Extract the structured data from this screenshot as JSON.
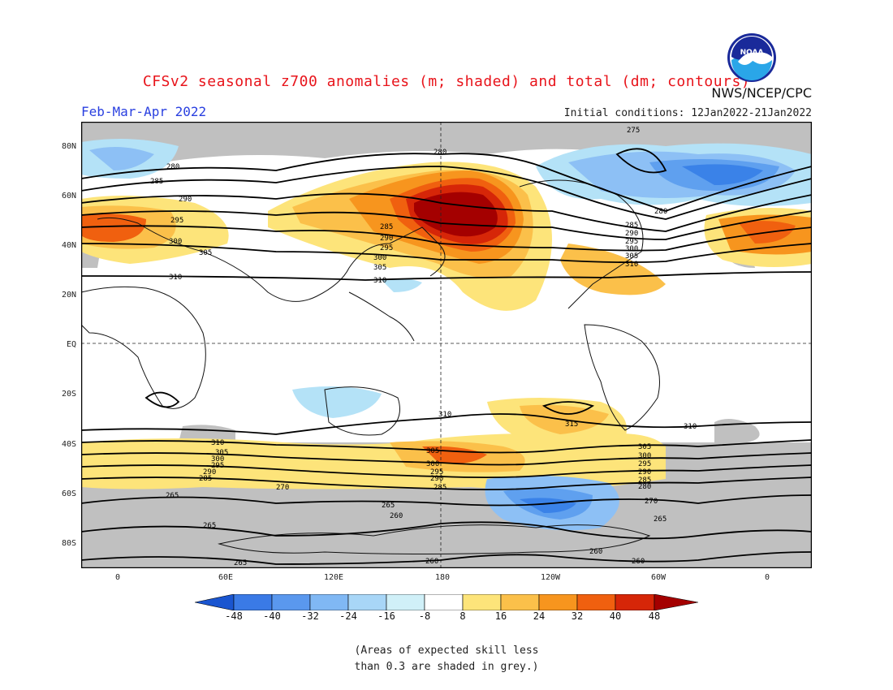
{
  "header": {
    "title": "CFSv2 seasonal z700 anomalies (m; shaded) and total (dm; contours)",
    "agency": "NWS/NCEP/CPC",
    "season": "Feb-Mar-Apr 2022",
    "initial_conditions": "Initial conditions: 12Jan2022-21Jan2022",
    "logo_text": "NOAA"
  },
  "map": {
    "lat_labels": [
      "80N",
      "60N",
      "40N",
      "20N",
      "EQ",
      "20S",
      "40S",
      "60S",
      "80S"
    ],
    "lon_labels": [
      "0",
      "60E",
      "120E",
      "180",
      "120W",
      "60W",
      "0"
    ],
    "contour_labels": [
      "275",
      "280",
      "285",
      "290",
      "295",
      "300",
      "305",
      "310",
      "315",
      "260",
      "265",
      "270"
    ],
    "colors": {
      "skill_grey": "#c0c0c0",
      "neg_48": "#1e5ed8",
      "neg_40": "#3a82e8",
      "neg_32": "#5fa0ef",
      "neg_24": "#8dc0f5",
      "neg_16": "#b4e2f7",
      "pos_8": "#fde47a",
      "pos_16": "#fbc04a",
      "pos_24": "#f7951e",
      "pos_32": "#f0600f",
      "pos_40": "#d62608",
      "pos_48": "#a40000"
    }
  },
  "colorbar": {
    "labels": [
      "-48",
      "-40",
      "-32",
      "-24",
      "-16",
      "-8",
      "8",
      "16",
      "24",
      "32",
      "40",
      "48"
    ],
    "colors": [
      "#1a55d0",
      "#3a7ae6",
      "#5a98ee",
      "#80b8f4",
      "#a8d6f7",
      "#d0f0f8",
      "#ffffff",
      "#fde47a",
      "#fbc04a",
      "#f7951e",
      "#f0600f",
      "#d62608",
      "#a40000"
    ]
  },
  "footnote": {
    "line1": "(Areas of expected skill less",
    "line2": "than 0.3 are shaded in grey.)"
  }
}
